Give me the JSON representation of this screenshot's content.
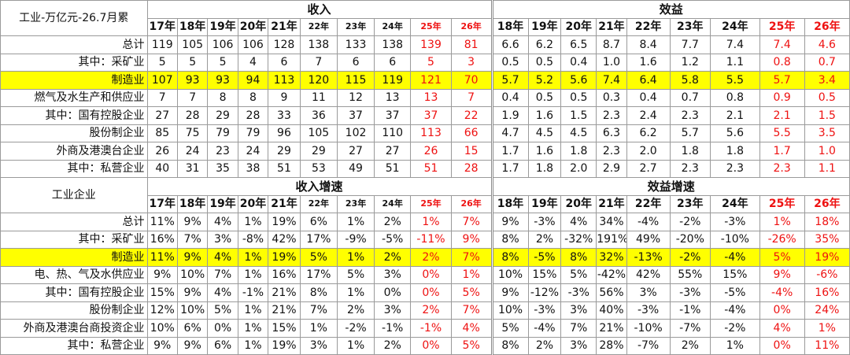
{
  "top": {
    "title": "工业-万亿元-26.7月累",
    "group_income": "收入",
    "group_profit": "效益",
    "income_years": [
      "17年",
      "18年",
      "19年",
      "20年",
      "21年",
      "22年",
      "23年",
      "24年",
      "25年",
      "26年"
    ],
    "profit_years": [
      "18年",
      "19年",
      "20年",
      "21年",
      "22年",
      "23年",
      "24年",
      "25年",
      "26年"
    ],
    "rows": [
      {
        "label": "总计",
        "income": [
          "119",
          "105",
          "106",
          "106",
          "128",
          "138",
          "133",
          "138",
          "139",
          "81"
        ],
        "profit": [
          "6.6",
          "6.2",
          "6.5",
          "8.7",
          "8.4",
          "7.7",
          "7.4",
          "7.4",
          "4.6"
        ]
      },
      {
        "label": "其中：采矿业",
        "income": [
          "5",
          "5",
          "5",
          "4",
          "6",
          "7",
          "6",
          "6",
          "5",
          "3"
        ],
        "profit": [
          "0.5",
          "0.5",
          "0.4",
          "1.0",
          "1.6",
          "1.2",
          "1.1",
          "0.8",
          "0.7"
        ]
      },
      {
        "label": "制造业",
        "income": [
          "107",
          "93",
          "93",
          "94",
          "113",
          "120",
          "115",
          "119",
          "121",
          "70"
        ],
        "profit": [
          "5.7",
          "5.2",
          "5.6",
          "7.4",
          "6.4",
          "5.8",
          "5.5",
          "5.7",
          "3.4"
        ]
      },
      {
        "label": "燃气及水生产和供应业",
        "income": [
          "7",
          "7",
          "8",
          "8",
          "9",
          "11",
          "12",
          "13",
          "13",
          "7"
        ],
        "profit": [
          "0.4",
          "0.5",
          "0.5",
          "0.3",
          "0.4",
          "0.7",
          "0.8",
          "0.9",
          "0.5"
        ]
      },
      {
        "label": "其中：国有控股企业",
        "income": [
          "27",
          "28",
          "29",
          "28",
          "33",
          "36",
          "37",
          "37",
          "37",
          "22"
        ],
        "profit": [
          "1.9",
          "1.6",
          "1.5",
          "2.3",
          "2.4",
          "2.3",
          "2.1",
          "2.1",
          "1.5"
        ]
      },
      {
        "label": "股份制企业",
        "income": [
          "85",
          "75",
          "79",
          "79",
          "96",
          "105",
          "102",
          "110",
          "113",
          "66"
        ],
        "profit": [
          "4.7",
          "4.5",
          "4.5",
          "6.3",
          "6.2",
          "5.7",
          "5.6",
          "5.5",
          "3.5"
        ]
      },
      {
        "label": "外商及港澳台企业",
        "income": [
          "26",
          "24",
          "23",
          "24",
          "29",
          "29",
          "27",
          "27",
          "26",
          "15"
        ],
        "profit": [
          "1.7",
          "1.6",
          "1.8",
          "2.3",
          "2.0",
          "1.8",
          "1.8",
          "1.7",
          "1.0"
        ]
      },
      {
        "label": "其中：私营企业",
        "income": [
          "40",
          "31",
          "35",
          "38",
          "51",
          "53",
          "49",
          "51",
          "51",
          "28"
        ],
        "profit": [
          "1.7",
          "1.8",
          "2.0",
          "2.9",
          "2.7",
          "2.3",
          "2.3",
          "2.3",
          "1.1"
        ]
      }
    ]
  },
  "bottom": {
    "title": "工业企业",
    "group_income": "收入增速",
    "group_profit": "效益增速",
    "income_years": [
      "17年",
      "18年",
      "19年",
      "20年",
      "21年",
      "22年",
      "23年",
      "24年",
      "25年",
      "26年"
    ],
    "profit_years": [
      "18年",
      "19年",
      "20年",
      "21年",
      "22年",
      "23年",
      "24年",
      "25年",
      "26年"
    ],
    "rows": [
      {
        "label": "总计",
        "income": [
          "11%",
          "9%",
          "4%",
          "1%",
          "19%",
          "6%",
          "1%",
          "2%",
          "1%",
          "7%"
        ],
        "profit": [
          "9%",
          "-3%",
          "4%",
          "34%",
          "-4%",
          "-2%",
          "-3%",
          "1%",
          "18%"
        ]
      },
      {
        "label": "其中：采矿业",
        "income": [
          "16%",
          "7%",
          "3%",
          "-8%",
          "42%",
          "17%",
          "-9%",
          "-5%",
          "-11%",
          "9%"
        ],
        "profit": [
          "8%",
          "2%",
          "-32%",
          "191%",
          "49%",
          "-20%",
          "-10%",
          "-26%",
          "35%"
        ]
      },
      {
        "label": "制造业",
        "income": [
          "11%",
          "9%",
          "4%",
          "1%",
          "19%",
          "5%",
          "1%",
          "2%",
          "2%",
          "7%"
        ],
        "profit": [
          "8%",
          "-5%",
          "8%",
          "32%",
          "-13%",
          "-2%",
          "-4%",
          "5%",
          "19%"
        ]
      },
      {
        "label": "电、热、气及水供应业",
        "income": [
          "9%",
          "10%",
          "7%",
          "1%",
          "16%",
          "17%",
          "5%",
          "3%",
          "0%",
          "1%"
        ],
        "profit": [
          "10%",
          "15%",
          "5%",
          "-42%",
          "42%",
          "55%",
          "15%",
          "9%",
          "-6%"
        ]
      },
      {
        "label": "其中：国有控股企业",
        "income": [
          "15%",
          "9%",
          "4%",
          "-1%",
          "21%",
          "8%",
          "1%",
          "0%",
          "0%",
          "5%"
        ],
        "profit": [
          "9%",
          "-12%",
          "-3%",
          "56%",
          "3%",
          "-3%",
          "-5%",
          "-4%",
          "16%"
        ]
      },
      {
        "label": "股份制企业",
        "income": [
          "12%",
          "10%",
          "5%",
          "1%",
          "21%",
          "7%",
          "2%",
          "3%",
          "2%",
          "7%"
        ],
        "profit": [
          "10%",
          "-3%",
          "3%",
          "40%",
          "-3%",
          "-1%",
          "-4%",
          "0%",
          "24%"
        ]
      },
      {
        "label": "外商及港澳台商投资企业",
        "income": [
          "10%",
          "6%",
          "0%",
          "1%",
          "15%",
          "1%",
          "-2%",
          "-1%",
          "-1%",
          "4%"
        ],
        "profit": [
          "5%",
          "-4%",
          "7%",
          "21%",
          "-10%",
          "-7%",
          "-2%",
          "4%",
          "1%"
        ]
      },
      {
        "label": "其中：私营企业",
        "income": [
          "9%",
          "9%",
          "6%",
          "1%",
          "19%",
          "3%",
          "1%",
          "2%",
          "0%",
          "5%"
        ],
        "profit": [
          "8%",
          "2%",
          "3%",
          "28%",
          "-7%",
          "2%",
          "1%",
          "0%",
          "11%"
        ]
      }
    ]
  },
  "styles": {
    "highlight_row_color": "#ffff00",
    "forecast_color": "#ee1111"
  }
}
